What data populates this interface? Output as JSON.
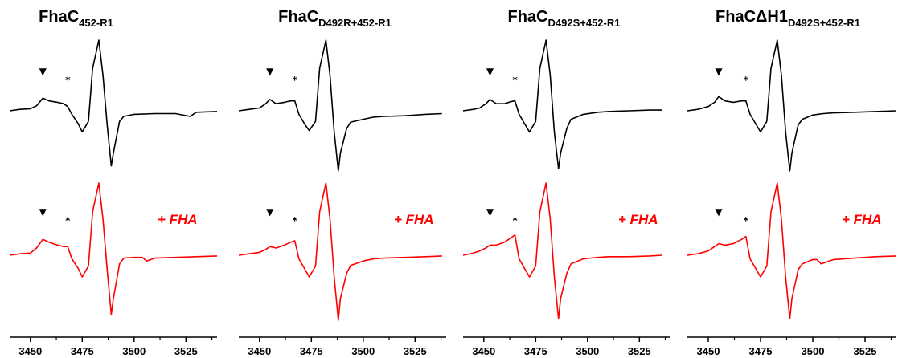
{
  "figure": {
    "fha_color": "#ff0000",
    "trace_colors": {
      "top": "#000000",
      "bottom": "#ff0000"
    },
    "marker_triangle": "▼",
    "marker_star": "*"
  },
  "chart_data": [
    {
      "type": "line",
      "panel_index": 0,
      "title": "FhaC",
      "subscript": "452-R1",
      "fha_label": "+ FHA",
      "xlim": [
        3440,
        3540
      ],
      "xticks": [
        3450,
        3475,
        3500,
        3525
      ],
      "xtick_labels": [
        "3450",
        "3475",
        "3500",
        "3525"
      ],
      "triangle_x": 3456,
      "star_x": 3468,
      "series": [
        {
          "trace": "top",
          "x": [
            3440,
            3445,
            3450,
            3453,
            3456,
            3459,
            3463,
            3466,
            3468,
            3470,
            3473,
            3475,
            3478,
            3480,
            3483,
            3485,
            3487,
            3489,
            3490,
            3493,
            3495,
            3500,
            3510,
            3520,
            3527,
            3530,
            3540
          ],
          "y": [
            0,
            0.02,
            0.03,
            0.07,
            0.18,
            0.14,
            0.12,
            0.1,
            0.06,
            -0.05,
            -0.18,
            -0.3,
            -0.15,
            0.6,
            1.0,
            0.5,
            -0.2,
            -0.78,
            -0.6,
            -0.15,
            -0.08,
            -0.05,
            -0.04,
            -0.04,
            -0.08,
            -0.02,
            -0.01
          ]
        },
        {
          "trace": "bottom",
          "x": [
            3440,
            3445,
            3450,
            3453,
            3456,
            3459,
            3463,
            3466,
            3468,
            3470,
            3473,
            3475,
            3478,
            3480,
            3483,
            3485,
            3487,
            3489,
            3490,
            3493,
            3495,
            3500,
            3504,
            3506,
            3510,
            3520,
            3530,
            3540
          ],
          "y": [
            0,
            0.02,
            0.03,
            0.1,
            0.22,
            0.18,
            0.14,
            0.12,
            0.12,
            -0.05,
            -0.18,
            -0.3,
            -0.15,
            0.6,
            1.0,
            0.5,
            -0.2,
            -0.82,
            -0.6,
            -0.12,
            -0.04,
            -0.03,
            -0.03,
            -0.08,
            -0.04,
            -0.03,
            -0.02,
            -0.01
          ]
        }
      ]
    },
    {
      "type": "line",
      "panel_index": 1,
      "title": "FhaC",
      "subscript": "D492R+452-R1",
      "fha_label": "+ FHA",
      "xlim": [
        3440,
        3540
      ],
      "xticks": [
        3450,
        3475,
        3500,
        3525
      ],
      "xtick_labels": [
        "3450",
        "3475",
        "3500",
        "3525"
      ],
      "triangle_x": 3455,
      "star_x": 3467,
      "series": [
        {
          "trace": "top",
          "x": [
            3440,
            3445,
            3450,
            3453,
            3455,
            3458,
            3462,
            3465,
            3467,
            3469,
            3472,
            3474,
            3477,
            3479,
            3482,
            3484,
            3486,
            3488,
            3489,
            3492,
            3494,
            3500,
            3505,
            3510,
            3520,
            3530,
            3538
          ],
          "y": [
            0,
            0.02,
            0.04,
            0.1,
            0.16,
            0.1,
            0.12,
            0.14,
            0.14,
            -0.05,
            -0.2,
            -0.28,
            -0.15,
            0.6,
            1.0,
            0.5,
            -0.3,
            -0.85,
            -0.6,
            -0.25,
            -0.16,
            -0.12,
            -0.09,
            -0.08,
            -0.07,
            -0.05,
            -0.04
          ]
        },
        {
          "trace": "bottom",
          "x": [
            3440,
            3445,
            3450,
            3453,
            3455,
            3458,
            3462,
            3465,
            3467,
            3469,
            3472,
            3474,
            3477,
            3479,
            3482,
            3484,
            3486,
            3488,
            3489,
            3492,
            3494,
            3500,
            3505,
            3510,
            3520,
            3530,
            3538
          ],
          "y": [
            0,
            0.02,
            0.04,
            0.08,
            0.12,
            0.1,
            0.14,
            0.18,
            0.2,
            -0.05,
            -0.2,
            -0.3,
            -0.15,
            0.6,
            1.0,
            0.5,
            -0.3,
            -0.9,
            -0.6,
            -0.25,
            -0.14,
            -0.08,
            -0.05,
            -0.04,
            -0.03,
            -0.02,
            -0.01
          ]
        }
      ]
    },
    {
      "type": "line",
      "panel_index": 2,
      "title": "FhaC",
      "subscript": "D492S+452-R1",
      "fha_label": "+ FHA",
      "xlim": [
        3440,
        3540
      ],
      "xticks": [
        3450,
        3475,
        3500,
        3525
      ],
      "xtick_labels": [
        "3450",
        "3475",
        "3500",
        "3525"
      ],
      "triangle_x": 3453,
      "star_x": 3465,
      "series": [
        {
          "trace": "top",
          "x": [
            3440,
            3445,
            3448,
            3451,
            3453,
            3456,
            3460,
            3463,
            3465,
            3467,
            3470,
            3472,
            3475,
            3477,
            3480,
            3482,
            3484,
            3486,
            3487,
            3490,
            3492,
            3498,
            3505,
            3510,
            3520,
            3530,
            3536
          ],
          "y": [
            0,
            0.02,
            0.04,
            0.1,
            0.16,
            0.1,
            0.1,
            0.13,
            0.14,
            -0.05,
            -0.2,
            -0.3,
            -0.15,
            0.6,
            1.0,
            0.5,
            -0.3,
            -0.82,
            -0.6,
            -0.25,
            -0.12,
            -0.05,
            -0.02,
            -0.01,
            0,
            0.01,
            0.01
          ]
        },
        {
          "trace": "bottom",
          "x": [
            3440,
            3445,
            3448,
            3451,
            3453,
            3456,
            3460,
            3463,
            3465,
            3467,
            3470,
            3472,
            3475,
            3477,
            3480,
            3482,
            3484,
            3486,
            3487,
            3490,
            3492,
            3498,
            3505,
            3510,
            3520,
            3530,
            3536
          ],
          "y": [
            0,
            0.03,
            0.06,
            0.1,
            0.14,
            0.14,
            0.18,
            0.24,
            0.28,
            -0.05,
            -0.2,
            -0.3,
            -0.15,
            0.6,
            1.0,
            0.5,
            -0.3,
            -0.88,
            -0.6,
            -0.25,
            -0.12,
            -0.05,
            -0.03,
            -0.02,
            -0.02,
            -0.01,
            0
          ]
        }
      ]
    },
    {
      "type": "line",
      "panel_index": 3,
      "title": "FhaCΔH1",
      "subscript": "D492S+452-R1",
      "fha_label": "+ FHA",
      "xlim": [
        3440,
        3540
      ],
      "xticks": [
        3450,
        3475,
        3500,
        3525
      ],
      "xtick_labels": [
        "3450",
        "3475",
        "3500",
        "3525"
      ],
      "triangle_x": 3455,
      "star_x": 3468,
      "series": [
        {
          "trace": "top",
          "x": [
            3440,
            3445,
            3450,
            3453,
            3455,
            3458,
            3462,
            3466,
            3468,
            3470,
            3473,
            3475,
            3478,
            3480,
            3483,
            3485,
            3487,
            3489,
            3490,
            3493,
            3495,
            3500,
            3505,
            3510,
            3520,
            3530,
            3540
          ],
          "y": [
            0,
            0.02,
            0.06,
            0.12,
            0.2,
            0.14,
            0.12,
            0.14,
            0.14,
            -0.05,
            -0.2,
            -0.3,
            -0.15,
            0.6,
            1.0,
            0.5,
            -0.3,
            -0.85,
            -0.6,
            -0.2,
            -0.12,
            -0.06,
            -0.04,
            -0.03,
            -0.02,
            -0.01,
            0
          ]
        },
        {
          "trace": "bottom",
          "x": [
            3440,
            3445,
            3450,
            3453,
            3455,
            3458,
            3462,
            3466,
            3468,
            3470,
            3473,
            3475,
            3478,
            3480,
            3483,
            3485,
            3487,
            3489,
            3490,
            3493,
            3495,
            3500,
            3502,
            3504,
            3510,
            3520,
            3530,
            3540
          ],
          "y": [
            0,
            0.02,
            0.06,
            0.12,
            0.16,
            0.14,
            0.16,
            0.22,
            0.26,
            -0.05,
            -0.2,
            -0.3,
            -0.15,
            0.6,
            1.0,
            0.5,
            -0.3,
            -0.88,
            -0.6,
            -0.2,
            -0.12,
            -0.06,
            -0.06,
            -0.12,
            -0.06,
            -0.04,
            -0.02,
            -0.01
          ]
        }
      ]
    }
  ]
}
